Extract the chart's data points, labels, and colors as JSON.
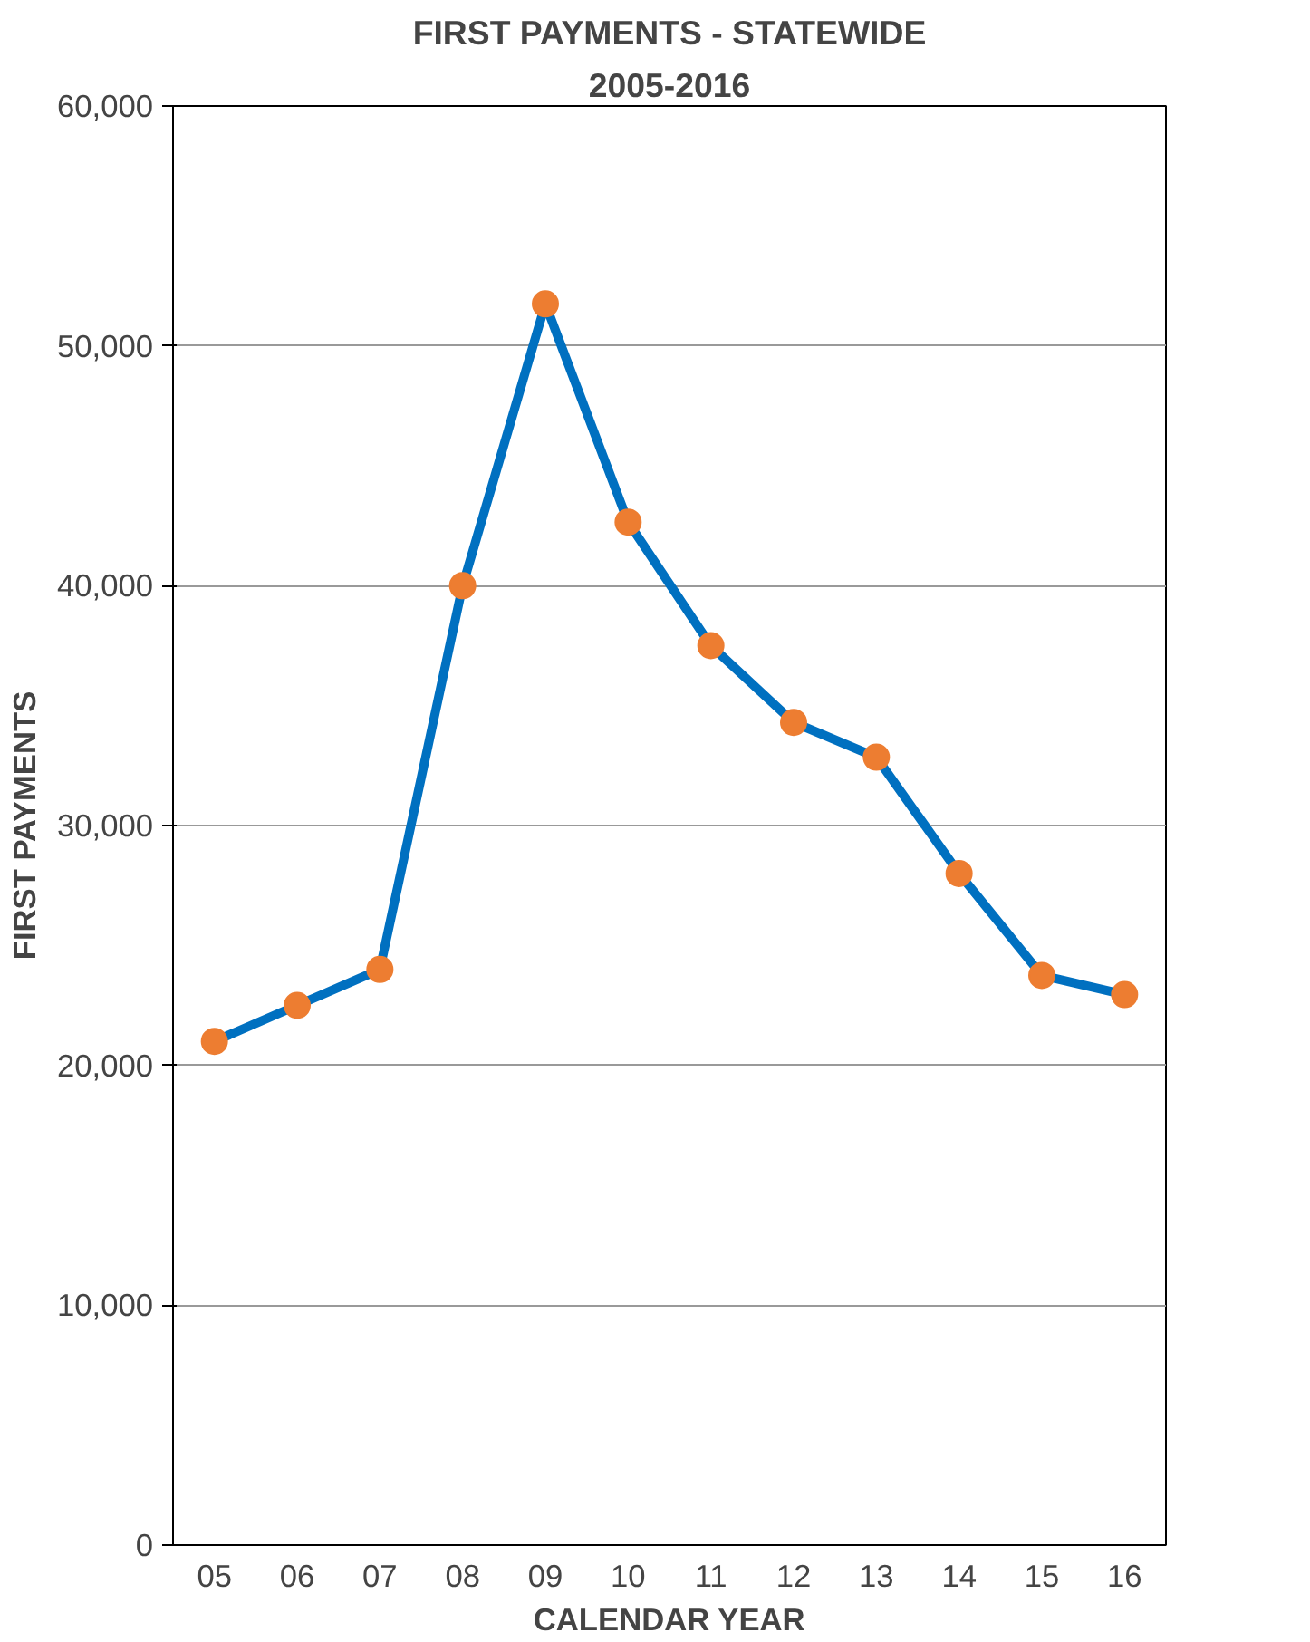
{
  "chart_data": {
    "type": "line",
    "title": "FIRST PAYMENTS - STATEWIDE",
    "subtitle": "2005-2016",
    "xlabel": "CALENDAR YEAR",
    "ylabel": "FIRST PAYMENTS",
    "categories": [
      "05",
      "06",
      "07",
      "08",
      "09",
      "10",
      "11",
      "12",
      "13",
      "14",
      "15",
      "16"
    ],
    "series": [
      {
        "color": "#0070c0",
        "colors": [
          "#ed7d31",
          "#ed7d31",
          "#ed7d31",
          "#ed7d31",
          "#ed7d31",
          "#ed7d31",
          "#ed7d31",
          "#ed7d31",
          "#ed7d31",
          "#ed7d31",
          "#ed7d31",
          "#ed7d31"
        ],
        "values": [
          21000,
          22500,
          24000,
          40000,
          51750,
          42650,
          37500,
          34300,
          32850,
          28000,
          23750,
          22950
        ]
      }
    ],
    "ylim": [
      0,
      60000
    ],
    "yticks": [
      {
        "value": 0,
        "label": "0"
      },
      {
        "value": 10000,
        "label": "10,000"
      },
      {
        "value": 20000,
        "label": "20,000"
      },
      {
        "value": 30000,
        "label": "30,000"
      },
      {
        "value": 40000,
        "label": "40,000"
      },
      {
        "value": 50000,
        "label": "50,000"
      },
      {
        "value": 60000,
        "label": "60,000"
      }
    ],
    "grid": "y",
    "marker": "circle",
    "line_style": "solid"
  }
}
